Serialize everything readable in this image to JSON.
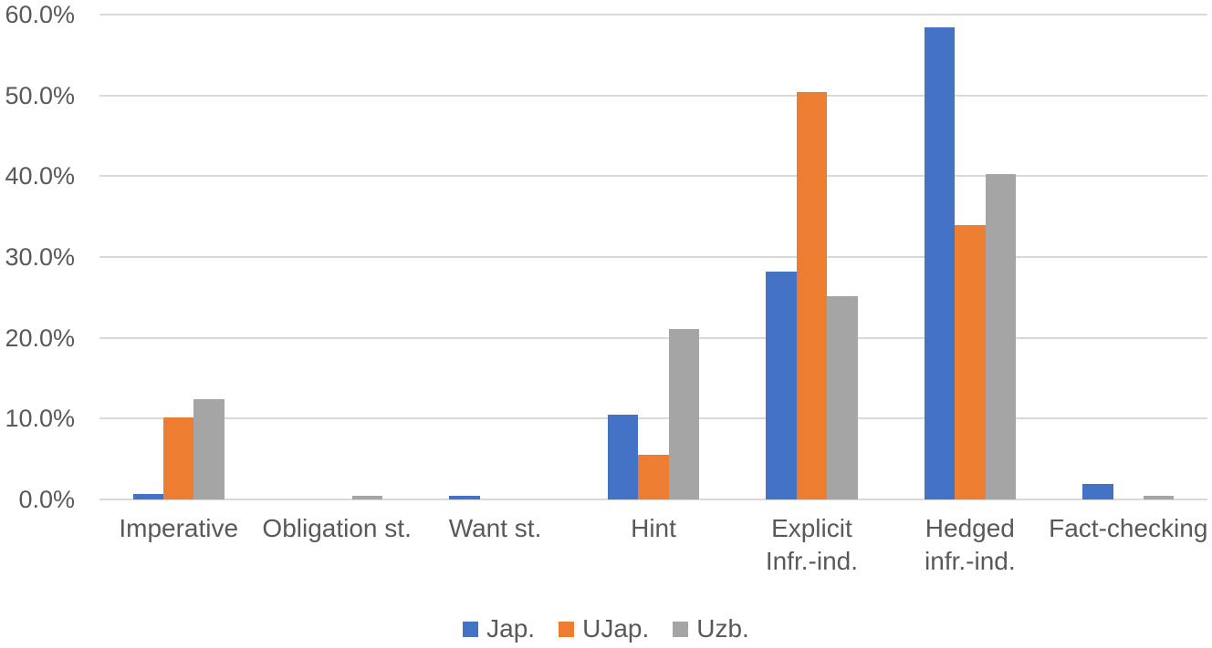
{
  "chart_data": {
    "type": "bar",
    "title": "",
    "xlabel": "",
    "ylabel": "",
    "categories": [
      "Imperative",
      "Obligation st.",
      "Want st.",
      "Hint",
      "Explicit\nInfr.-ind.",
      "Hedged\ninfr.-ind.",
      "Fact-checking"
    ],
    "series": [
      {
        "name": "Jap.",
        "color": "#4472C4",
        "values": [
          0.7,
          0,
          0.4,
          10.5,
          28.2,
          58.4,
          1.9
        ]
      },
      {
        "name": "UJap.",
        "color": "#ED7D31",
        "values": [
          10.2,
          0,
          0,
          5.5,
          50.4,
          33.9,
          0
        ]
      },
      {
        "name": "Uzb.",
        "color": "#A5A5A5",
        "values": [
          12.4,
          0.4,
          0,
          21.1,
          25.2,
          40.3,
          0.4
        ]
      }
    ],
    "y_axis": {
      "unit": "%",
      "min": 0,
      "max": 60,
      "step": 10,
      "tick_labels": [
        "0.0%",
        "10.0%",
        "20.0%",
        "30.0%",
        "40.0%",
        "50.0%",
        "60.0%"
      ]
    },
    "grid": true,
    "legend": {
      "position": "bottom",
      "entries": [
        "Jap.",
        "UJap.",
        "Uzb."
      ]
    },
    "styles": {
      "gridline_color": "#D9D9D9",
      "axis_text_color": "#595959",
      "background": "#FFFFFF"
    }
  }
}
